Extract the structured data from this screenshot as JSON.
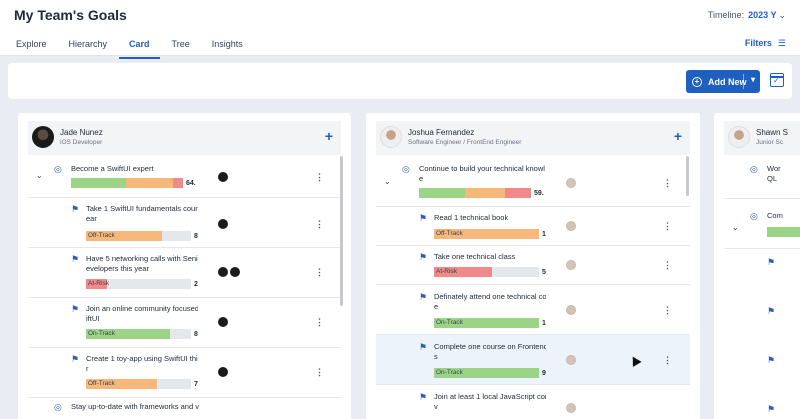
{
  "header": {
    "title": "My Team's Goals",
    "timeline_label": "Timeline:",
    "timeline_value": "2023 Y",
    "filters_label": "Filters",
    "tabs": [
      {
        "label": "Explore"
      },
      {
        "label": "Hierarchy"
      },
      {
        "label": "Card"
      },
      {
        "label": "Tree"
      },
      {
        "label": "Insights"
      }
    ],
    "active_tab": "Card"
  },
  "toolbar": {
    "add_new_label": "Add New"
  },
  "colors": {
    "accent": "#1f5fbf",
    "on_track": "#9bd487",
    "off_track": "#f6b77a",
    "at_risk": "#f08a8a"
  },
  "cards": [
    {
      "name": "Jade Nunez",
      "role": "iOS Developer",
      "goals": [
        {
          "line1": "Become a SwiftUI expert",
          "line2": "",
          "percent": "64.",
          "progress": {
            "on_track": 0.49,
            "off_track": 0.42,
            "at_risk": 0.09
          }
        },
        {
          "line1": "Take 1 SwiftUI fundamentals cours",
          "line2": "ear",
          "status": "Off-Track",
          "percent": "8",
          "progress": 0.72
        },
        {
          "line1": "Have 5 networking calls with Senic",
          "line2": "evelopers this year",
          "status": "At-Risk",
          "percent": "2",
          "progress": 0.2
        },
        {
          "line1": "Join an online community focused",
          "line2": "iftUI",
          "status": "On-Track",
          "percent": "8",
          "progress": 0.8
        },
        {
          "line1": "Create 1 toy-app using SwiftUI this",
          "line2": "r",
          "status": "Off-Track",
          "percent": "7",
          "progress": 0.68
        },
        {
          "line1": "Stay up-to-date with frameworks and v",
          "line2": ""
        }
      ]
    },
    {
      "name": "Joshua Fernandez",
      "role": "Software Engineer / FrontEnd Engineer",
      "goals": [
        {
          "line1": "Continue to build your technical knowl",
          "line2": "e",
          "percent": "59.",
          "progress": {
            "on_track": 0.37,
            "off_track": 0.33,
            "at_risk": 0.22
          }
        },
        {
          "line1": "Read 1 technical book",
          "line2": "",
          "status": "Off-Track",
          "percent": "1",
          "progress": 1.0
        },
        {
          "line1": "Take one technical class",
          "line2": "",
          "status": "At-Risk",
          "percent": "5",
          "progress": 0.5
        },
        {
          "line1": "Definately attend one technical co",
          "line2": "e",
          "status": "On-Track",
          "percent": "1",
          "progress": 1.0
        },
        {
          "line1": "Complete one course on Frontend",
          "line2": "s",
          "status": "On-Track",
          "percent": "9",
          "progress": 1.0
        },
        {
          "line1": "Join at least 1 local JavaScript con",
          "line2": "v"
        }
      ]
    },
    {
      "name": "Shawn S",
      "role": "Junior Sc",
      "goals": [
        {
          "line1": "Wor",
          "line2": "QL"
        },
        {
          "line1": "Com",
          "line2": ""
        }
      ]
    }
  ]
}
